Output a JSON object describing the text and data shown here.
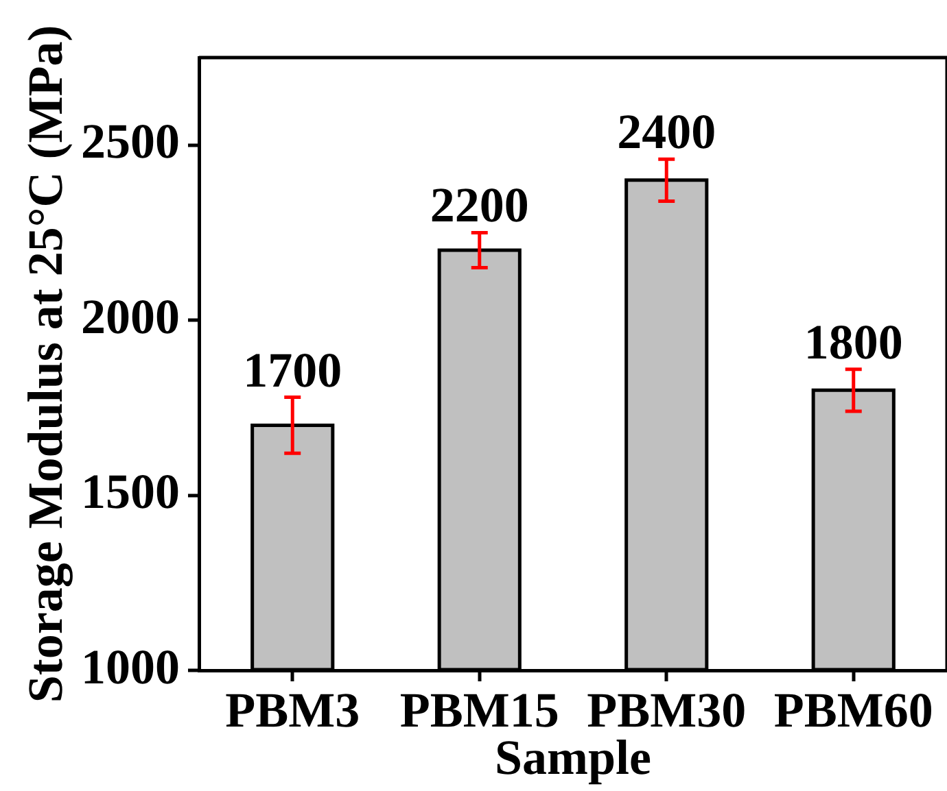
{
  "chart_data": {
    "type": "bar",
    "xlabel": "Sample",
    "ylabel": "Storage Modulus at 25°C (MPa)",
    "categories": [
      "PBM3",
      "PBM15",
      "PBM30",
      "PBM60"
    ],
    "values": [
      1700,
      2200,
      2400,
      1800
    ],
    "errors": [
      80,
      50,
      60,
      60
    ],
    "color": "#c0c0c0",
    "ylim": [
      1000,
      2750
    ],
    "yticks": [
      1000,
      1500,
      2000,
      2500
    ],
    "data_labels": true
  }
}
